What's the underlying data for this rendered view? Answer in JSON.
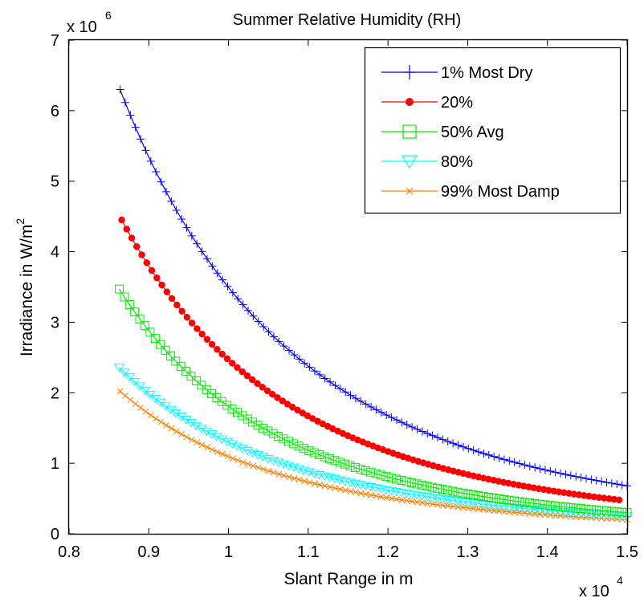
{
  "chart_data": {
    "type": "line",
    "title": "Summer Relative Humidity (RH)",
    "xlabel": "Slant Range in m",
    "ylabel": "Irradiance in W/m",
    "ylabel_sup": "2",
    "x_multiplier": {
      "base": "x 10",
      "exponent": "4"
    },
    "y_multiplier": {
      "base": "x 10",
      "exponent": "6"
    },
    "xlim": [
      0.8,
      1.5
    ],
    "ylim": [
      0,
      7
    ],
    "xticks": [
      0.8,
      0.9,
      1,
      1.1,
      1.2,
      1.3,
      1.4,
      1.5
    ],
    "xtick_labels": [
      "0.8",
      "0.9",
      "1",
      "1.1",
      "1.2",
      "1.3",
      "1.4",
      "1.5"
    ],
    "yticks": [
      0,
      1,
      2,
      3,
      4,
      5,
      6,
      7
    ],
    "ytick_labels": [
      "0",
      "1",
      "2",
      "3",
      "4",
      "5",
      "6",
      "7"
    ],
    "grid": false,
    "legend_position": "top-right",
    "x_range": [
      0.864,
      1.5
    ],
    "series": [
      {
        "name": "1% Most Dry",
        "color": "#0000ff",
        "marker": "plus",
        "x_start": 0.864,
        "x_end": 1.5,
        "y_start": 6.3,
        "y_end": 0.68
      },
      {
        "name": "20%",
        "color": "#ff0000",
        "marker": "dot",
        "x_start": 0.866,
        "x_end": 1.49,
        "y_start": 4.45,
        "y_end": 0.48
      },
      {
        "name": "50% Avg",
        "color": "#00ee00",
        "marker": "square",
        "x_start": 0.863,
        "x_end": 1.5,
        "y_start": 3.47,
        "y_end": 0.3
      },
      {
        "name": "80%",
        "color": "#00ffff",
        "marker": "triangle-down",
        "x_start": 0.863,
        "x_end": 1.5,
        "y_start": 2.36,
        "y_end": 0.25
      },
      {
        "name": "99% Most Damp",
        "color": "#ff8000",
        "marker": "x",
        "x_start": 0.864,
        "x_end": 1.5,
        "y_start": 2.02,
        "y_end": 0.2
      }
    ]
  }
}
